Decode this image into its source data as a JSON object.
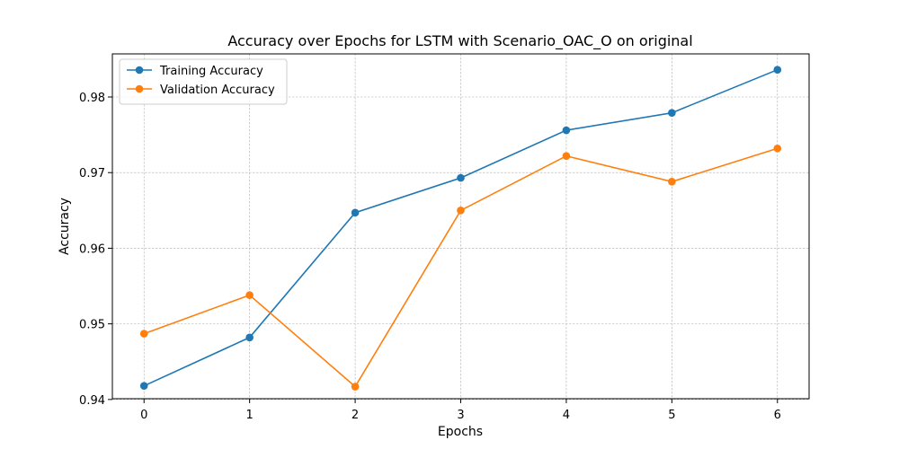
{
  "chart_data": {
    "type": "line",
    "title": "Accuracy over Epochs for LSTM with Scenario_OAC_O on original",
    "xlabel": "Epochs",
    "ylabel": "Accuracy",
    "x": [
      0,
      1,
      2,
      3,
      4,
      5,
      6
    ],
    "x_ticks": [
      0,
      1,
      2,
      3,
      4,
      5,
      6
    ],
    "y_ticks": [
      0.94,
      0.95,
      0.96,
      0.97,
      0.98
    ],
    "xlim": [
      -0.3,
      6.3
    ],
    "ylim": [
      0.9401,
      0.9857
    ],
    "grid": true,
    "legend_position": "top-left",
    "series": [
      {
        "name": "Training Accuracy",
        "color": "#1f77b4",
        "marker": "circle",
        "values": [
          0.9418,
          0.9482,
          0.9647,
          0.9693,
          0.9756,
          0.9779,
          0.9836
        ]
      },
      {
        "name": "Validation Accuracy",
        "color": "#ff7f0e",
        "marker": "circle",
        "values": [
          0.9487,
          0.9538,
          0.9417,
          0.965,
          0.9722,
          0.9688,
          0.9732
        ]
      }
    ]
  }
}
